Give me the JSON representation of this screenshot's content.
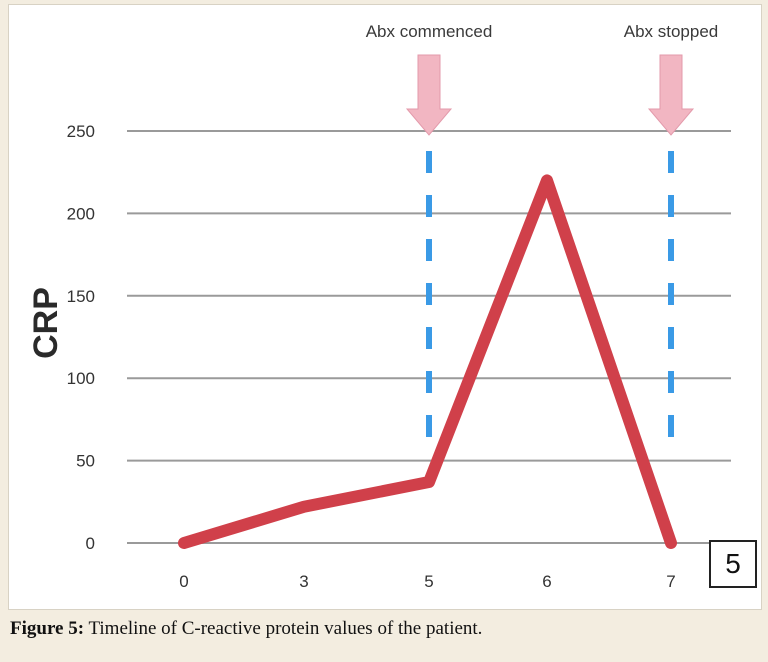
{
  "chart_data": {
    "type": "line",
    "x": [
      "0",
      "3",
      "5",
      "6",
      "7"
    ],
    "series": [
      {
        "values": [
          0,
          22,
          37,
          220,
          0
        ],
        "color": "#d0404a"
      }
    ],
    "xlabel": "",
    "ylabel": "CRP",
    "ylim": [
      0,
      250
    ],
    "yticks": [
      0,
      50,
      100,
      150,
      200,
      250
    ],
    "grid": true,
    "annotations": [
      {
        "text": "Abx commenced",
        "x": "5"
      },
      {
        "text": "Abx stopped",
        "x": "7"
      }
    ],
    "marker_line_color": "#3a9ae6",
    "arrow_color": "#f2b6c2"
  },
  "panel_label": "5",
  "caption": {
    "label": "Figure 5:",
    "text": " Timeline of C-reactive protein values of the patient."
  }
}
